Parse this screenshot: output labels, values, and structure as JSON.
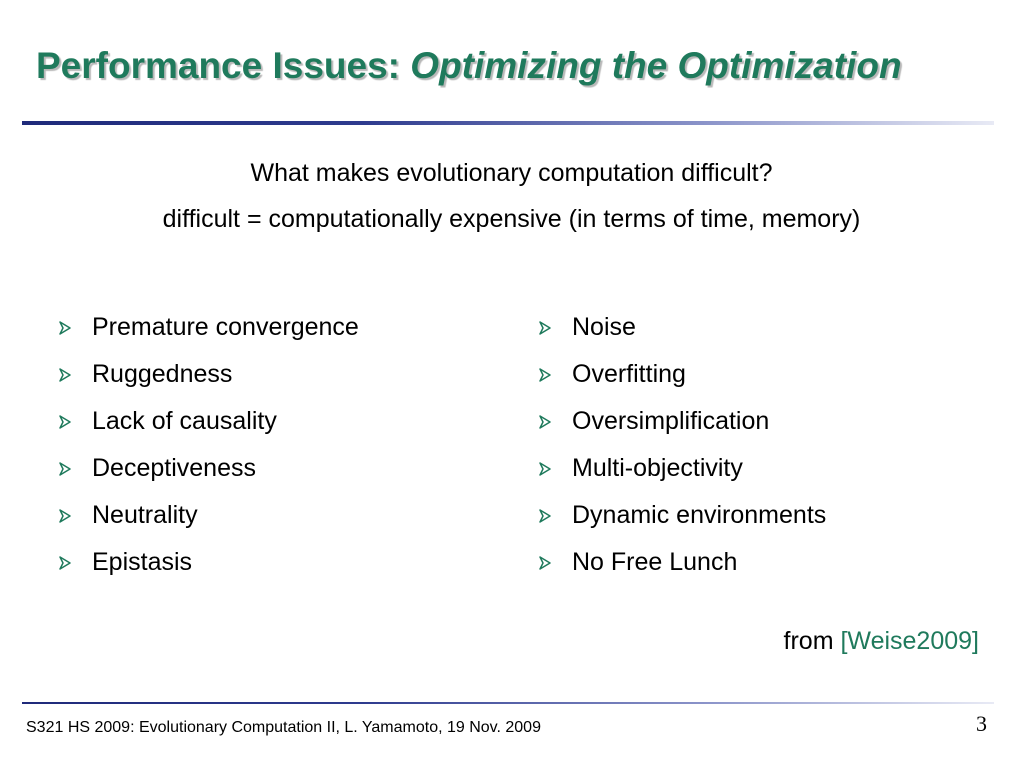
{
  "title": {
    "main": "Performance Issues: ",
    "italic": "Optimizing the Optimization"
  },
  "subtitle": {
    "line1": "What makes evolutionary computation difficult?",
    "line2": "difficult = computationally expensive (in terms of time, memory)"
  },
  "left_bullets": [
    "Premature convergence",
    "Ruggedness",
    "Lack of causality",
    "Deceptiveness",
    "Neutrality",
    "Epistasis"
  ],
  "right_bullets": [
    "Noise",
    "Overfitting",
    "Oversimplification",
    "Multi-objectivity",
    "Dynamic environments",
    "No Free Lunch"
  ],
  "citation": {
    "prefix": "from ",
    "ref": "[Weise2009]"
  },
  "footer": {
    "text": "S321 HS 2009: Evolutionary Computation II, L. Yamamoto, 19 Nov. 2009",
    "page_number": "3"
  },
  "colors": {
    "title": "#1F7A5C",
    "citation_ref": "#1F7A5C",
    "rule": "#2E3B8E",
    "bullet_arrow": "#1F7A5C"
  },
  "icons": {
    "bullet": "arrowhead-bullet-icon"
  }
}
